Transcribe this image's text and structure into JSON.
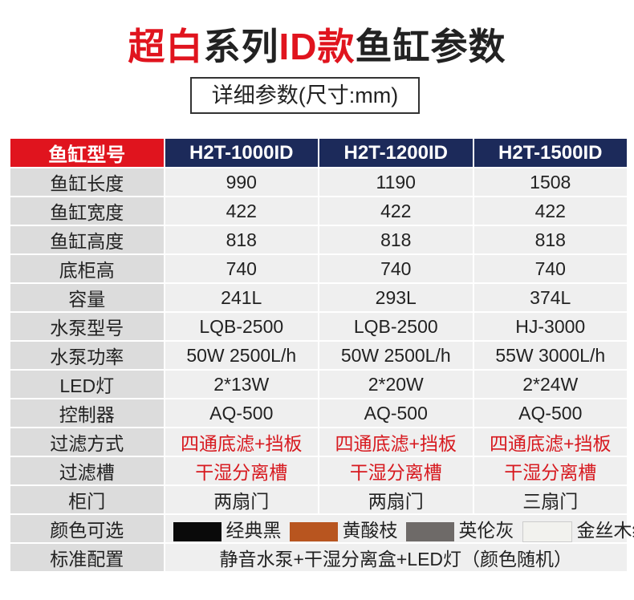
{
  "header": {
    "title_parts": [
      "超白",
      "系列",
      "ID款",
      "鱼缸参数"
    ],
    "subtitle": "详细参数(尺寸:mm)"
  },
  "table": {
    "header": [
      "鱼缸型号",
      "H2T-1000ID",
      "H2T-1200ID",
      "H2T-1500ID"
    ],
    "rows": [
      [
        "鱼缸长度",
        "990",
        "1190",
        "1508"
      ],
      [
        "鱼缸宽度",
        "422",
        "422",
        "422"
      ],
      [
        "鱼缸高度",
        "818",
        "818",
        "818"
      ],
      [
        "底柜高",
        "740",
        "740",
        "740"
      ],
      [
        "容量",
        "241L",
        "293L",
        "374L"
      ],
      [
        "水泵型号",
        "LQB-2500",
        "LQB-2500",
        "HJ-3000"
      ],
      [
        "水泵功率",
        "50W 2500L/h",
        "50W 2500L/h",
        "55W 3000L/h"
      ],
      [
        "LED灯",
        "2*13W",
        "2*20W",
        "2*24W"
      ],
      [
        "控制器",
        "AQ-500",
        "AQ-500",
        "AQ-500"
      ],
      [
        "过滤方式",
        "四通底滤+挡板",
        "四通底滤+挡板",
        "四通底滤+挡板"
      ],
      [
        "过滤槽",
        "干湿分离槽",
        "干湿分离槽",
        "干湿分离槽"
      ],
      [
        "柜门",
        "两扇门",
        "两扇门",
        "三扇门"
      ]
    ],
    "colors": {
      "label": "颜色可选",
      "options": [
        "经典黑",
        "黄酸枝",
        "英伦灰",
        "金丝木纹"
      ]
    },
    "standard": {
      "label": "标准配置",
      "value": "静音水泵+干湿分离盒+LED灯（颜色随机）"
    }
  }
}
